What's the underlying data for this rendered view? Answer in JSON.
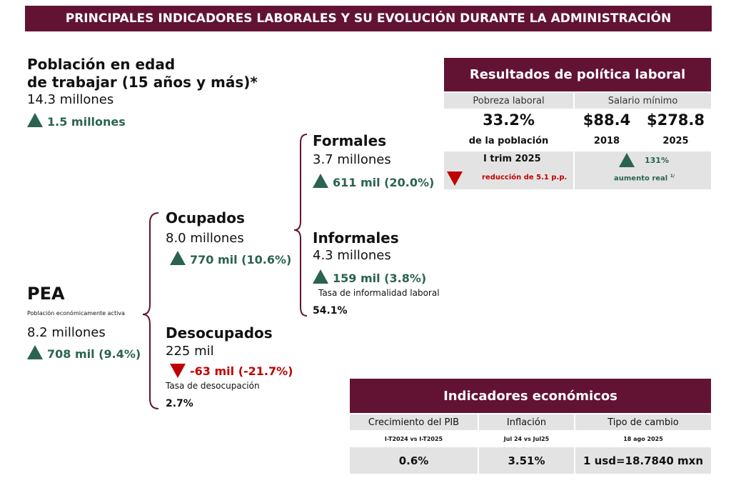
{
  "title": "PRINCIPALES INDICADORES LABORALES Y SU EVOLUCIÓN DURANTE LA ADMINISTRACIÓN",
  "poblacion": {
    "line1": "Población en edad",
    "line2": "de trabajar (15 años y más)*",
    "value": "14.3 millones",
    "change": "1.5 millones"
  },
  "pea": {
    "label": "PEA",
    "subtitle": "Población económicamente activa",
    "value": "8.2 millones",
    "change": "708 mil (9.4%)"
  },
  "ocupados": {
    "label": "Ocupados",
    "value": "8.0 millones",
    "change": "770 mil (10.6%)"
  },
  "desocupados": {
    "label": "Desocupados",
    "value": "225 mil",
    "change": "-63 mil (-21.7%)",
    "rate_label": "Tasa de desocupación",
    "rate": "2.7%"
  },
  "formales": {
    "label": "Formales",
    "value": "3.7 millones",
    "change": "611 mil (20.0%)"
  },
  "informales": {
    "label": "Informales",
    "value": "4.3 millones",
    "change": "159 mil (3.8%)",
    "rate_label": "Tasa de informalidad laboral",
    "rate": "54.1%"
  },
  "politica": {
    "title": "Resultados de política laboral",
    "pobreza_label": "Pobreza laboral",
    "pobreza_value": "33.2%",
    "pobreza_sub": "de la población",
    "pobreza_period": "I trim 2025",
    "pobreza_change": "reducción de 5.1 p.p.",
    "salario_label": "Salario mínimo",
    "salario_2018": "$88.4",
    "year_2018": "2018",
    "salario_2025": "$278.8",
    "year_2025": "2025",
    "salario_change": "131%",
    "salario_change_label": "aumento real",
    "footnote": "1/"
  },
  "economicos": {
    "title": "Indicadores económicos",
    "columns": [
      {
        "label": "Crecimiento del PIB",
        "period": "I-T2024 vs I-T2025",
        "value": "0.6%"
      },
      {
        "label": "Inflación",
        "period": "Jul 24 vs Jul25",
        "value": "3.51%"
      },
      {
        "label": "Tipo de cambio",
        "period": "18 ago 2025",
        "value": "1 usd=18.7840 mxn"
      }
    ]
  },
  "colors": {
    "brand": "#621334",
    "up": "#2a6350",
    "down": "#c00000"
  }
}
